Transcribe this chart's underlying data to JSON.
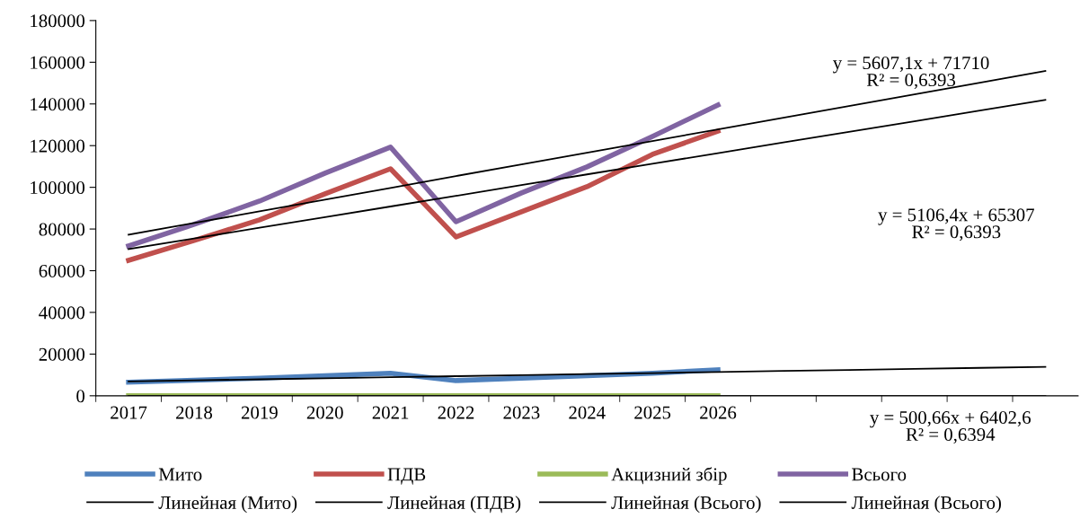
{
  "chart_data": {
    "type": "line",
    "categories": [
      "2017",
      "2018",
      "2019",
      "2020",
      "2021",
      "2022",
      "2023",
      "2024",
      "2025",
      "2026",
      null,
      null,
      null,
      null,
      null
    ],
    "ylim": [
      0,
      180000
    ],
    "yticks": [
      0,
      20000,
      40000,
      60000,
      80000,
      100000,
      120000,
      140000,
      160000,
      180000
    ],
    "grid": false,
    "legend": "bottom",
    "marker": "none",
    "line_style": "solid",
    "series": [
      {
        "name": "Мито",
        "color": "#4f81bd",
        "values": [
          6500,
          7500,
          8400,
          9600,
          10800,
          7300,
          8400,
          9600,
          10800,
          12500,
          null,
          null,
          null,
          null,
          null
        ]
      },
      {
        "name": "ПДВ",
        "color": "#c0504d",
        "values": [
          65000,
          74500,
          84400,
          96900,
          108900,
          76200,
          88300,
          100300,
          115800,
          127000,
          null,
          null,
          null,
          null,
          null
        ]
      },
      {
        "name": "Акцизний збір",
        "color": "#9bbb59",
        "values": [
          0,
          0,
          0,
          0,
          0,
          0,
          0,
          0,
          0,
          0,
          null,
          null,
          null,
          null,
          null
        ]
      },
      {
        "name": "Всього",
        "color": "#8064a2",
        "values": [
          71900,
          82200,
          93400,
          106800,
          119300,
          83500,
          97300,
          109800,
          124400,
          139500,
          null,
          null,
          null,
          null,
          null
        ]
      },
      {
        "name": "Линейная (Мито)",
        "color": "#000000",
        "values": [
          6900,
          7400,
          7900,
          8400,
          8900,
          9400,
          9900,
          10400,
          10900,
          11400,
          11900,
          12400,
          12900,
          13400,
          13900
        ]
      },
      {
        "name": "Линейная (ПДВ)",
        "color": "#000000",
        "values": [
          70400,
          75500,
          80600,
          85700,
          90800,
          95900,
          101100,
          106200,
          111300,
          116400,
          121500,
          126600,
          131700,
          136800,
          141900
        ]
      },
      {
        "name": "Линейная (Всього)",
        "color": "#000000",
        "values": [
          0,
          0,
          0,
          0,
          0,
          0,
          0,
          0,
          0,
          0,
          0,
          0,
          0,
          0,
          0
        ]
      },
      {
        "name": "Линейная (Всього)",
        "color": "#000000",
        "values": [
          77300,
          82900,
          88500,
          94100,
          99700,
          105400,
          111000,
          116600,
          122200,
          127800,
          133400,
          139000,
          144600,
          150200,
          155800
        ]
      }
    ],
    "annotations": [
      "y = 5607,1x + 71710\nR² = 0,6393",
      "y = 5106,4x + 65307\nR² = 0,6393",
      "y = 500,66x + 6402,6\nR² = 0,6394"
    ]
  }
}
